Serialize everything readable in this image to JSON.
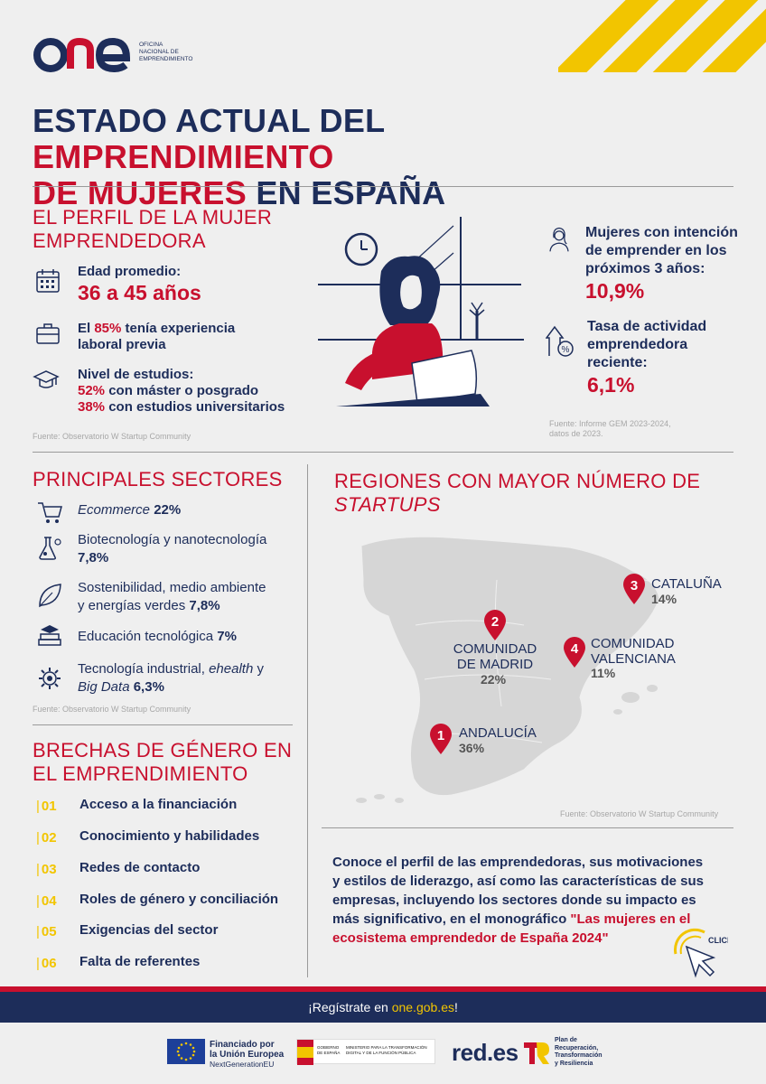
{
  "brand": {
    "logo": "ONE",
    "tagline_lines": [
      "OFICINA",
      "NACIONAL DE",
      "EMPRENDIMIENTO"
    ]
  },
  "title": {
    "line1_a": "ESTADO ACTUAL DEL ",
    "line1_b": "EMPRENDIMIENTO",
    "line2_a": "DE MUJERES",
    "line2_b": " EN ESPAÑA"
  },
  "profile": {
    "heading_line1": "EL PERFIL DE LA MUJER",
    "heading_line2": "EMPRENDEDORA",
    "age_label": "Edad promedio:",
    "age_value": "36 a 45 años",
    "exp_a": "El ",
    "exp_b": "85%",
    "exp_c": " tenía experiencia",
    "exp_line2": "laboral previa",
    "edu_label": "Nivel de estudios:",
    "edu_l1_a": "52%",
    "edu_l1_b": " con máster o posgrado",
    "edu_l2_a": "38%",
    "edu_l2_b": " con estudios universitarios",
    "source": "Fuente: Observatorio W Startup Community"
  },
  "stats": {
    "intent_l1": "Mujeres con intención",
    "intent_l2": "de emprender en los",
    "intent_l3": "próximos 3 años:",
    "intent_value": "10,9%",
    "rate_l1": "Tasa de actividad",
    "rate_l2": "emprendedora",
    "rate_l3": "reciente:",
    "rate_value": "6,1%",
    "source_l1": "Fuente: Informe GEM 2023-2024,",
    "source_l2": "datos de 2023."
  },
  "sectors": {
    "heading": "PRINCIPALES SECTORES",
    "items": [
      {
        "a": "Ecommerce",
        "b": " 22%"
      },
      {
        "a": "Biotecnología y nanotecnología",
        "b": "7,8%"
      },
      {
        "a": "Sostenibilidad, medio ambiente",
        "a2": "y energías verdes ",
        "b": "7,8%"
      },
      {
        "a": "Educación tecnológica ",
        "b": "7%"
      },
      {
        "a": "Tecnología industrial, ",
        "a_it": "ehealth",
        "a3": " y",
        "a4": "Big Data",
        "b": " 6,3%"
      }
    ],
    "source": "Fuente: Observatorio W Startup Community"
  },
  "regions": {
    "heading_line1": "REGIONES CON MAYOR NÚMERO DE",
    "heading_line2": "STARTUPS",
    "items": [
      {
        "num": "1",
        "name": "ANDALUCÍA",
        "pct": "36%"
      },
      {
        "num": "2",
        "name_l1": "COMUNIDAD",
        "name_l2": "DE MADRID",
        "pct": "22%"
      },
      {
        "num": "3",
        "name": "CATALUÑA",
        "pct": "14%"
      },
      {
        "num": "4",
        "name_l1": "COMUNIDAD",
        "name_l2": "VALENCIANA",
        "pct": "11%"
      }
    ],
    "source": "Fuente: Observatorio W Startup Community"
  },
  "gaps": {
    "heading_line1": "BRECHAS DE GÉNERO EN",
    "heading_line2": "EL EMPRENDIMIENTO",
    "items": [
      {
        "num": "01",
        "label": "Acceso a la financiación"
      },
      {
        "num": "02",
        "label": "Conocimiento y habilidades"
      },
      {
        "num": "03",
        "label": "Redes de contacto"
      },
      {
        "num": "04",
        "label": "Roles de género y conciliación"
      },
      {
        "num": "05",
        "label": "Exigencias del sector"
      },
      {
        "num": "06",
        "label": "Falta de referentes"
      }
    ]
  },
  "promo": {
    "l1": "Conoce  el perfil de las emprendedoras, sus motivaciones",
    "l2": "y estilos de liderazgo, así como las características de sus",
    "l3": "empresas, incluyendo los sectores donde su impacto es",
    "l4_a": "más significativo, en el monográfico ",
    "l4_b": "\"Las mujeres en el",
    "l5": "ecosistema emprendedor de España 2024\"",
    "click": "CLICK!"
  },
  "banner": {
    "text_a": "¡Regístrate en ",
    "text_b": "one.gob.es",
    "text_c": "!"
  },
  "footer": {
    "eu_l1": "Financiado por",
    "eu_l2": "la Unión Europea",
    "eu_l3": "NextGenerationEU",
    "gov": "GOBIERNO DE ESPAÑA",
    "ministry": "MINISTERIO PARA LA TRANSFORMACIÓN DIGITAL Y DE LA FUNCIÓN PÚBLICA",
    "reds": "red.es",
    "plan_l1": "Plan de",
    "plan_l2": "Recuperación,",
    "plan_l3": "Transformación",
    "plan_l4": "y Resiliencia"
  },
  "colors": {
    "navy": "#1d2d5a",
    "red": "#c8102e",
    "yellow": "#f2c500",
    "background": "#efefef"
  }
}
